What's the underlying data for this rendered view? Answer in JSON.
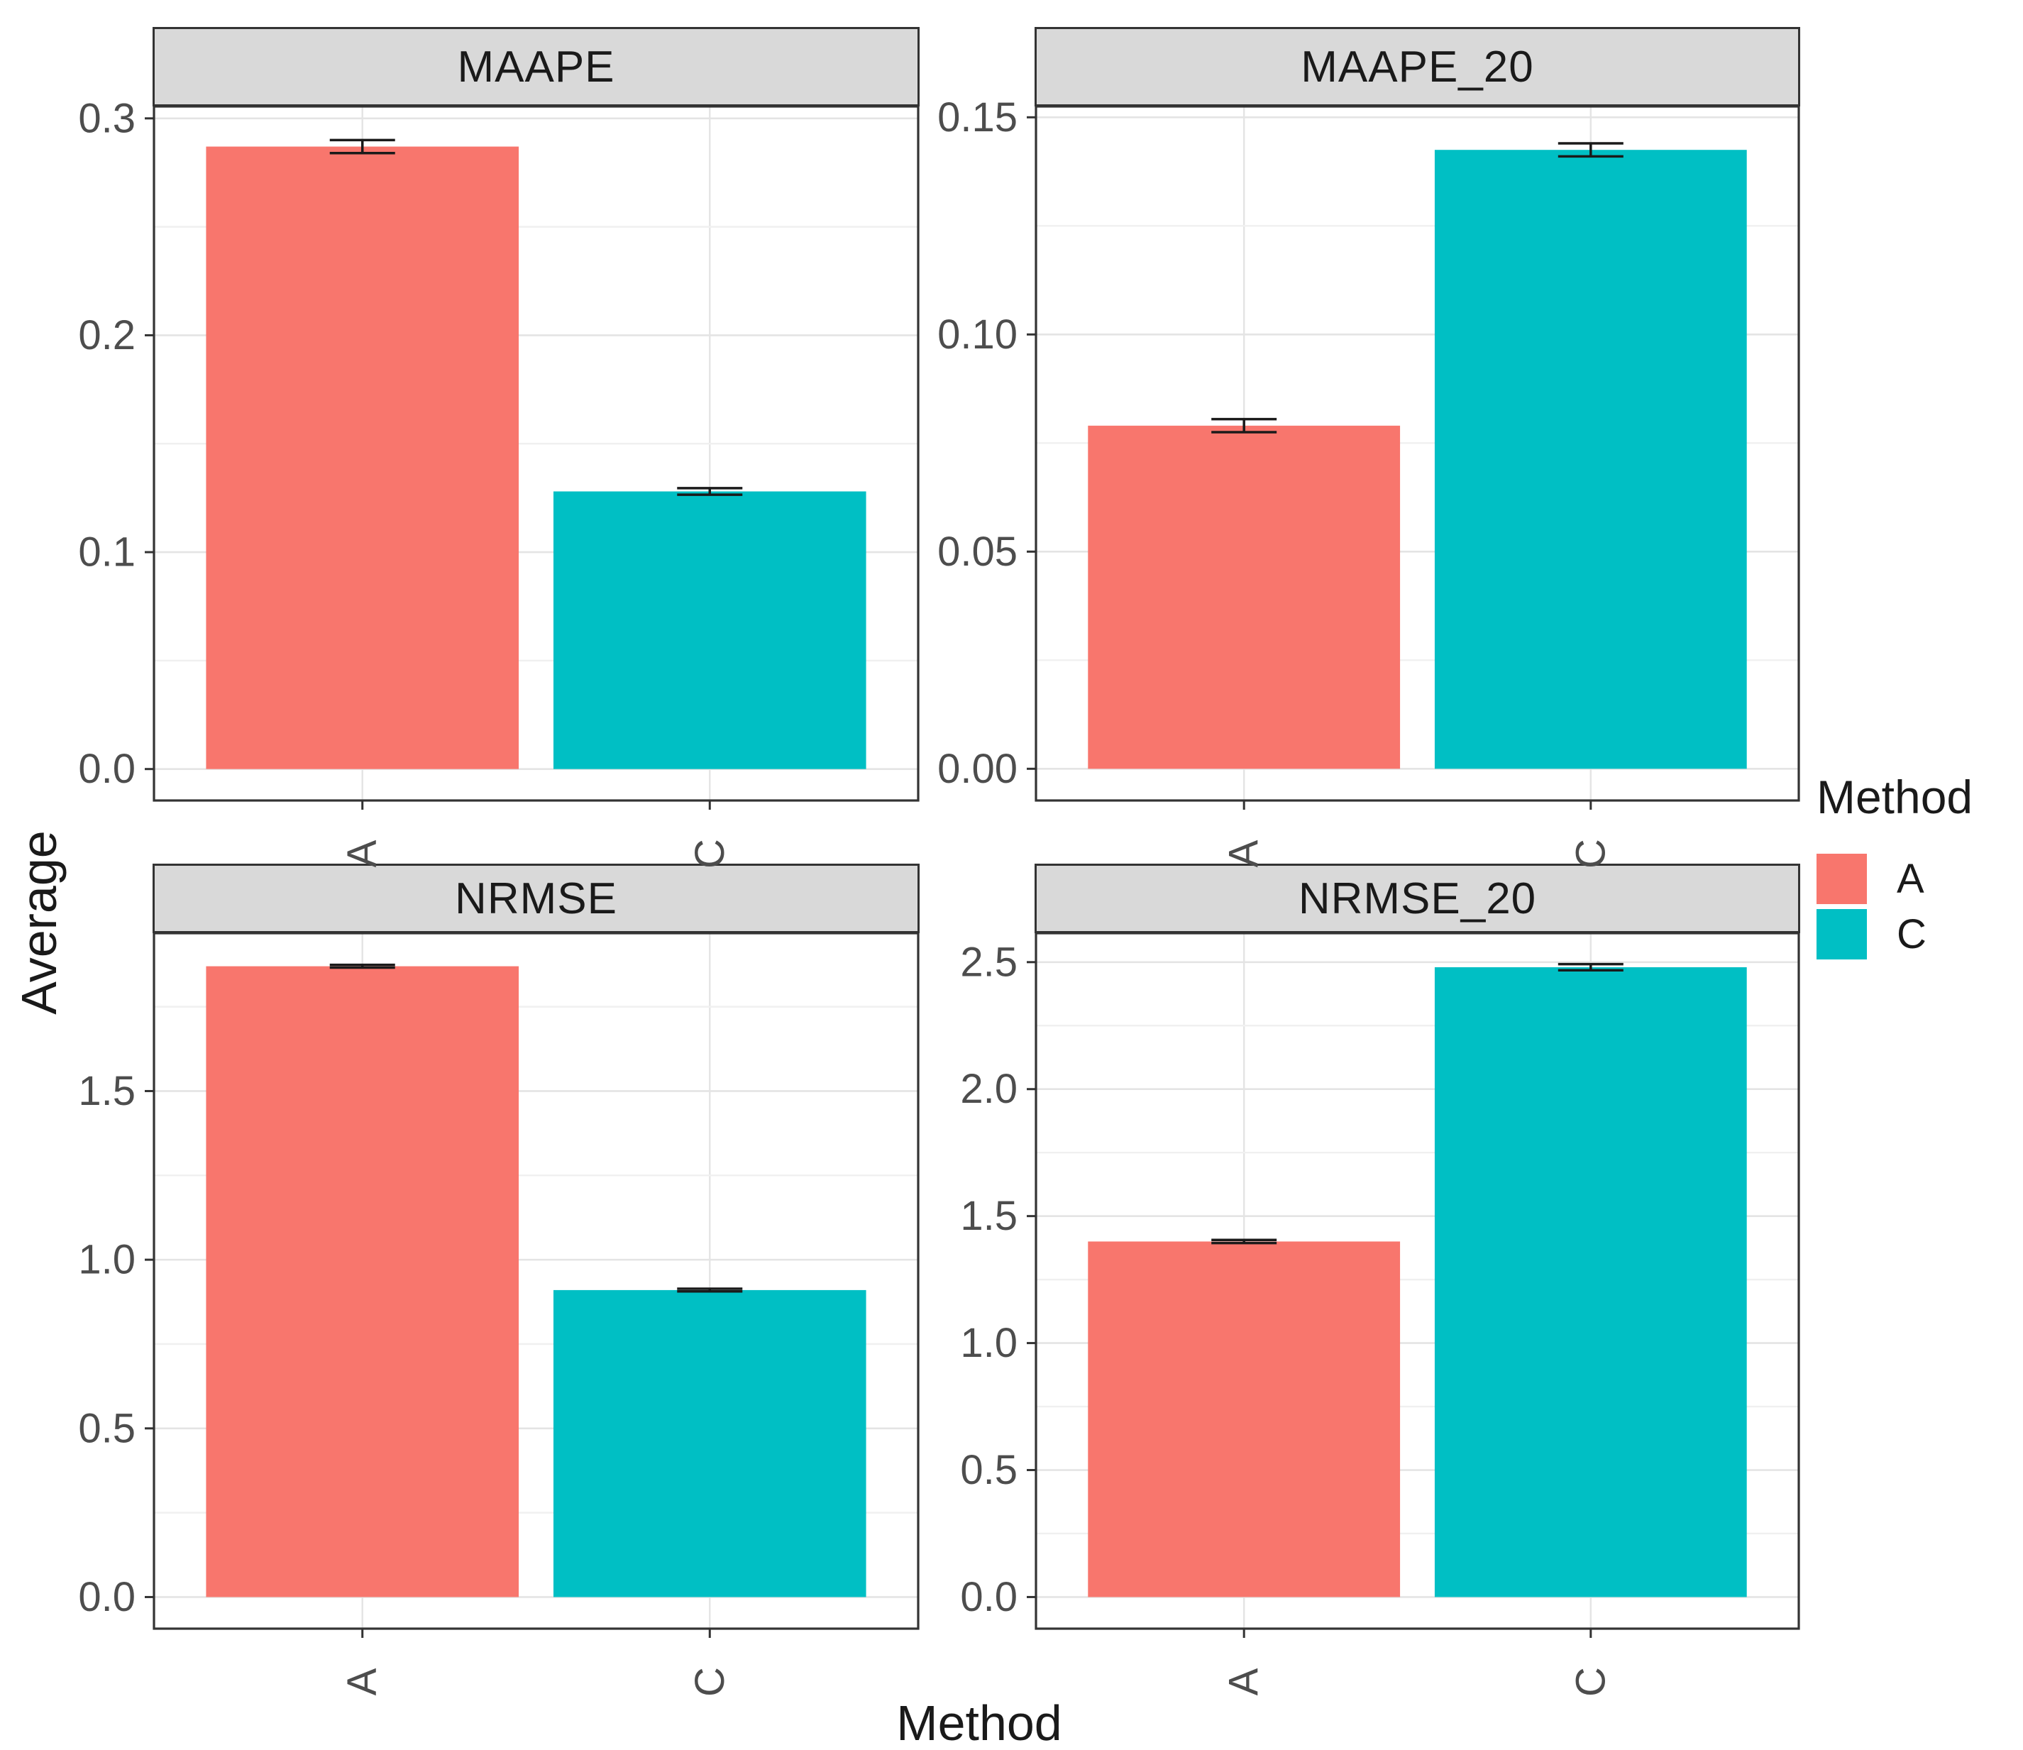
{
  "figure": {
    "y_axis_title": "Average",
    "x_axis_title": "Method"
  },
  "legend": {
    "title": "Method",
    "position": "right",
    "items": [
      {
        "label": "A",
        "color": "#F8766D"
      },
      {
        "label": "C",
        "color": "#00BFC4"
      }
    ]
  },
  "style_colors": {
    "bar_a": "#F8766D",
    "bar_c": "#00BFC4",
    "strip_background": "#d9d9d9",
    "panel_border": "#333333",
    "grid_major": "#e4e4e4",
    "grid_minor": "#f0f0f0",
    "tick_text": "#4d4d4d",
    "error_bar": "#1a1a1a"
  },
  "chart_data": [
    {
      "type": "bar",
      "facet": "MAAPE",
      "categories": [
        "A",
        "C"
      ],
      "series": [
        {
          "name": "A",
          "value": 0.287,
          "error": 0.003,
          "color": "#F8766D"
        },
        {
          "name": "C",
          "value": 0.128,
          "error": 0.0015,
          "color": "#00BFC4"
        }
      ],
      "ytick_values": [
        0,
        0.1,
        0.2,
        0.3
      ],
      "ytick_labels": [
        "0.0",
        "0.1",
        "0.2",
        "0.3"
      ],
      "ylim": [
        -0.0145,
        0.3055
      ],
      "grid": true
    },
    {
      "type": "bar",
      "facet": "MAAPE_20",
      "categories": [
        "A",
        "C"
      ],
      "series": [
        {
          "name": "A",
          "value": 0.079,
          "error": 0.0015,
          "color": "#F8766D"
        },
        {
          "name": "C",
          "value": 0.1425,
          "error": 0.0015,
          "color": "#00BFC4"
        }
      ],
      "ytick_values": [
        0,
        0.05,
        0.1,
        0.15
      ],
      "ytick_labels": [
        "0.00",
        "0.05",
        "0.10",
        "0.15"
      ],
      "ylim": [
        -0.0073,
        0.1525
      ],
      "grid": true
    },
    {
      "type": "bar",
      "facet": "NRMSE",
      "categories": [
        "A",
        "C"
      ],
      "series": [
        {
          "name": "A",
          "value": 1.87,
          "error": 0.004,
          "color": "#F8766D"
        },
        {
          "name": "C",
          "value": 0.91,
          "error": 0.004,
          "color": "#00BFC4"
        }
      ],
      "ytick_values": [
        0,
        0.5,
        1.0,
        1.5
      ],
      "ytick_labels": [
        "0.0",
        "0.5",
        "1.0",
        "1.5"
      ],
      "ylim": [
        -0.0937,
        1.968
      ],
      "grid": true
    },
    {
      "type": "bar",
      "facet": "NRMSE_20",
      "categories": [
        "A",
        "C"
      ],
      "series": [
        {
          "name": "A",
          "value": 1.4,
          "error": 0.006,
          "color": "#F8766D"
        },
        {
          "name": "C",
          "value": 2.48,
          "error": 0.012,
          "color": "#00BFC4"
        }
      ],
      "ytick_values": [
        0,
        0.5,
        1.0,
        1.5,
        2.0,
        2.5
      ],
      "ytick_labels": [
        "0.0",
        "0.5",
        "1.0",
        "1.5",
        "2.0",
        "2.5"
      ],
      "ylim": [
        -0.1245,
        2.614
      ],
      "grid": true
    }
  ]
}
